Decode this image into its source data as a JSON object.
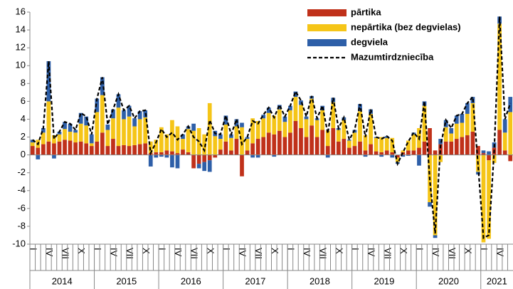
{
  "chart_data": {
    "type": "stacked-bar-line",
    "categories": [
      "I",
      null,
      null,
      "IV",
      null,
      null,
      "VII",
      null,
      null,
      "X",
      null,
      null,
      "I",
      null,
      null,
      "IV",
      null,
      null,
      "VII",
      null,
      null,
      "X",
      null,
      null,
      "I",
      null,
      null,
      "IV",
      null,
      null,
      "VII",
      null,
      null,
      "X",
      null,
      null,
      "I",
      null,
      null,
      "IV",
      null,
      null,
      "VII",
      null,
      null,
      "X",
      null,
      null,
      "I",
      null,
      null,
      "IV",
      null,
      null,
      "VII",
      null,
      null,
      "X",
      null,
      null,
      "I",
      null,
      null,
      "IV",
      null,
      null,
      "VII",
      null,
      null,
      "X",
      null,
      null,
      "I",
      null,
      null,
      "IV",
      null,
      null,
      "VII",
      null,
      null,
      "X",
      null,
      null,
      "I",
      null,
      null,
      "IV",
      null,
      null
    ],
    "years": [
      "2014",
      "2015",
      "2016",
      "2017",
      "2018",
      "2019",
      "2020",
      "2021"
    ],
    "ylim": [
      -10,
      16
    ],
    "yticks": [
      -10,
      -8,
      -6,
      -4,
      -2,
      0,
      2,
      4,
      6,
      8,
      10,
      12,
      14,
      16
    ],
    "grid": false,
    "series": [
      {
        "name": "pārtika",
        "kind": "bar",
        "color": "#c0311a",
        "values": [
          1.0,
          0.8,
          1.2,
          1.5,
          1.3,
          1.5,
          1.7,
          1.6,
          1.4,
          1.5,
          1.3,
          1.0,
          1.5,
          2.5,
          1.0,
          1.8,
          1.0,
          1.1,
          1.0,
          1.1,
          1.2,
          1.3,
          0.2,
          0.3,
          0.3,
          0.5,
          0.4,
          0.2,
          0.6,
          0.3,
          -1.5,
          -1.0,
          -0.8,
          -0.6,
          -0.3,
          0.6,
          1.5,
          0.5,
          1.8,
          -2.4,
          0.5,
          1.3,
          1.8,
          2.0,
          2.5,
          2.3,
          2.7,
          2.0,
          2.5,
          3.8,
          3.0,
          2.0,
          3.3,
          2.0,
          2.8,
          1.0,
          3.0,
          1.5,
          1.8,
          0.8,
          1.0,
          1.5,
          0.5,
          1.2,
          0.4,
          0.3,
          0.5,
          0.3,
          -0.3,
          0.3,
          0.5,
          0.5,
          0.8,
          1.5,
          3.0,
          0.5,
          1.2,
          1.5,
          1.5,
          1.8,
          2.0,
          2.2,
          2.6,
          1.0,
          0.2,
          -0.6,
          0.8,
          2.8,
          0.5,
          -0.7
        ]
      },
      {
        "name": "nepārtika (bez degvielas)",
        "kind": "bar",
        "color": "#f5c518",
        "values": [
          0.4,
          0.9,
          1.3,
          4.5,
          0.9,
          0.8,
          1.2,
          1.0,
          1.1,
          2.0,
          2.0,
          0.3,
          3.3,
          4.2,
          1.8,
          2.3,
          4.3,
          2.9,
          3.3,
          2.1,
          2.8,
          2.9,
          1.3,
          1.4,
          2.8,
          1.8,
          3.5,
          3.0,
          1.2,
          2.6,
          2.7,
          3.0,
          2.3,
          5.8,
          2.1,
          1.2,
          1.9,
          1.4,
          1.4,
          3.1,
          1.3,
          2.8,
          2.0,
          2.1,
          2.2,
          2.1,
          2.4,
          1.7,
          2.5,
          2.7,
          2.6,
          2.0,
          3.0,
          1.9,
          2.2,
          1.7,
          2.9,
          1.3,
          2.1,
          0.8,
          1.5,
          3.4,
          1.7,
          3.4,
          1.5,
          1.7,
          1.4,
          1.6,
          -0.5,
          0.2,
          1.1,
          1.8,
          2.2,
          4.0,
          -5.3,
          -9.0,
          -0.8,
          1.6,
          0.9,
          1.7,
          1.6,
          2.4,
          3.2,
          -1.9,
          -9.8,
          -8.8,
          -0.9,
          11.9,
          2.0,
          4.8
        ]
      },
      {
        "name": "degviela",
        "kind": "bar",
        "color": "#2e5fa8",
        "values": [
          0.3,
          -0.5,
          0.5,
          4.5,
          -0.4,
          0.3,
          0.8,
          0.9,
          0.3,
          1.2,
          1.0,
          1.0,
          1.5,
          2.0,
          0.6,
          1.0,
          1.5,
          1.0,
          1.2,
          0.9,
          0.9,
          0.8,
          -1.3,
          -0.3,
          -0.2,
          -0.3,
          -1.4,
          -1.5,
          0.5,
          0.3,
          0.8,
          -0.5,
          -1.0,
          -1.3,
          0.6,
          0.5,
          1.0,
          0.4,
          0.8,
          0.5,
          0.2,
          -0.3,
          -0.3,
          0.4,
          0.6,
          -0.2,
          0.5,
          0.6,
          0.5,
          0.6,
          0.5,
          0.3,
          0.3,
          0.2,
          0.5,
          -0.3,
          0.5,
          0.2,
          0.3,
          0.1,
          0.3,
          0.8,
          -0.2,
          0.5,
          0.1,
          -0.2,
          0.2,
          -0.3,
          -0.2,
          -0.2,
          -0.1,
          0.2,
          -1.2,
          0.5,
          -0.5,
          -0.3,
          0.6,
          0.8,
          0.6,
          0.9,
          1.0,
          1.2,
          0.7,
          -0.3,
          0.3,
          0.4,
          0.6,
          0.8,
          1.5,
          1.7
        ]
      },
      {
        "name": "Mazumtirdzniecība",
        "kind": "line",
        "style": "dashed",
        "color": "#000000",
        "values": [
          1.7,
          1.2,
          3.0,
          10.5,
          1.8,
          2.6,
          3.7,
          3.5,
          2.8,
          4.7,
          4.3,
          2.3,
          6.3,
          8.7,
          3.4,
          5.1,
          6.8,
          5.0,
          5.5,
          4.1,
          4.9,
          5.0,
          0.2,
          1.4,
          2.9,
          2.0,
          2.5,
          1.7,
          2.3,
          3.2,
          2.0,
          1.5,
          0.5,
          3.9,
          2.4,
          2.3,
          4.4,
          2.3,
          4.0,
          1.2,
          2.0,
          3.8,
          3.5,
          4.5,
          5.3,
          4.2,
          5.6,
          4.3,
          5.5,
          7.1,
          6.1,
          4.3,
          6.6,
          4.1,
          5.5,
          2.4,
          6.4,
          3.0,
          4.2,
          1.7,
          2.8,
          5.7,
          2.0,
          5.1,
          2.0,
          1.8,
          2.1,
          1.6,
          -1.0,
          0.3,
          1.5,
          2.5,
          1.8,
          6.0,
          -2.8,
          -8.8,
          1.0,
          3.9,
          3.0,
          4.4,
          4.6,
          5.8,
          6.5,
          -1.2,
          -9.3,
          -9.0,
          0.5,
          15.5,
          4.0,
          5.8
        ]
      }
    ]
  }
}
